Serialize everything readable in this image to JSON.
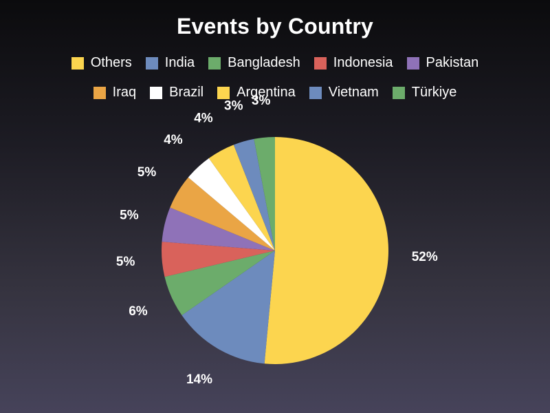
{
  "chart_data": {
    "type": "pie",
    "title": "Events by Country",
    "legend_position": "top",
    "categories": [
      "Others",
      "India",
      "Bangladesh",
      "Indonesia",
      "Pakistan",
      "Iraq",
      "Brazil",
      "Argentina",
      "Vietnam",
      "Türkiye"
    ],
    "values": [
      52,
      14,
      6,
      5,
      5,
      5,
      4,
      4,
      3,
      3
    ],
    "labels": [
      "52%",
      "14%",
      "6%",
      "5%",
      "5%",
      "5%",
      "4%",
      "4%",
      "3%",
      "3%"
    ],
    "colors": [
      "#fcd54f",
      "#6d8bbd",
      "#6cac6b",
      "#d9625b",
      "#8f72b8",
      "#eaa545",
      "#ffffff",
      "#fcd54f",
      "#6d8bbd",
      "#6cac6b"
    ]
  }
}
